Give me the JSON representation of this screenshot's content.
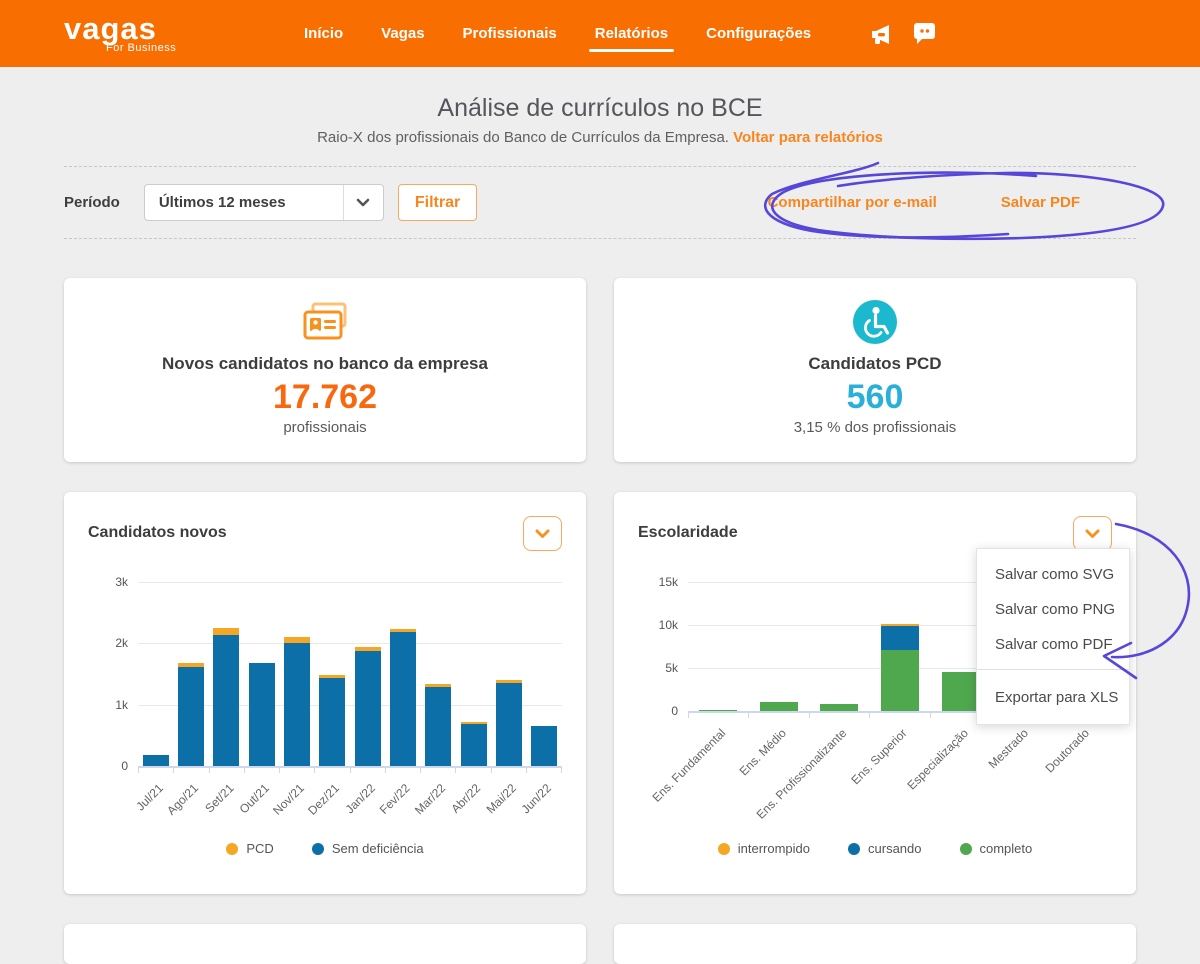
{
  "header": {
    "brand": "vagas",
    "brand_sub": "For Business",
    "nav": [
      {
        "label": "Início",
        "active": false
      },
      {
        "label": "Vagas",
        "active": false
      },
      {
        "label": "Profissionais",
        "active": false
      },
      {
        "label": "Relatórios",
        "active": true
      },
      {
        "label": "Configurações",
        "active": false
      }
    ]
  },
  "page": {
    "title": "Análise de currículos no BCE",
    "subtitle": "Raio-X dos profissionais do Banco de Currículos da Empresa.",
    "back_link": "Voltar para relatórios"
  },
  "filter_bar": {
    "label": "Período",
    "select_value": "Últimos 12 meses",
    "filter_button": "Filtrar",
    "share_email_link": "Compartilhar por e-mail",
    "save_pdf_link": "Salvar PDF"
  },
  "stats": [
    {
      "icon": "id-card-icon",
      "title": "Novos candidatos no banco da empresa",
      "value": "17.762",
      "caption": "profissionais",
      "color": "#f8690f"
    },
    {
      "icon": "wheelchair-icon",
      "title": "Candidatos PCD",
      "value": "560",
      "caption": "3,15 % dos profissionais",
      "color": "#29b0d8"
    }
  ],
  "export_menu": {
    "items": [
      "Salvar como SVG",
      "Salvar como PNG",
      "Salvar como PDF"
    ],
    "highlighted_item": "Exportar para XLS"
  },
  "chart_data": [
    {
      "type": "bar",
      "title": "Candidatos novos",
      "stacked": true,
      "categories": [
        "Jul/21",
        "Ago/21",
        "Set/21",
        "Out/21",
        "Nov/21",
        "Dez/21",
        "Jan/22",
        "Fev/22",
        "Mar/22",
        "Abr/22",
        "Mai/22",
        "Jun/22"
      ],
      "series": [
        {
          "name": "PCD",
          "color": "#f5a623",
          "values": [
            0,
            60,
            110,
            0,
            100,
            50,
            60,
            40,
            40,
            30,
            40,
            0
          ]
        },
        {
          "name": "Sem deficiência",
          "color": "#0d6fa8",
          "values": [
            180,
            1620,
            2140,
            1680,
            2000,
            1430,
            1880,
            2190,
            1290,
            690,
            1360,
            660
          ]
        }
      ],
      "ylim": [
        0,
        3000
      ],
      "yticks": [
        {
          "v": 3000,
          "label": "3k"
        },
        {
          "v": 2000,
          "label": "2k"
        },
        {
          "v": 1000,
          "label": "1k"
        },
        {
          "v": 0,
          "label": "0"
        }
      ],
      "legend_position": "bottom",
      "grid": true
    },
    {
      "type": "bar",
      "title": "Escolaridade",
      "stacked": true,
      "categories": [
        "Ens. Fundamental",
        "Ens. Médio",
        "Ens. Profissionalizante",
        "Ens. Superior",
        "Especialização",
        "Mestrado",
        "Doutorado"
      ],
      "series": [
        {
          "name": "interrompido",
          "color": "#f5a623",
          "values": [
            0,
            0,
            0,
            200,
            0,
            0,
            0
          ]
        },
        {
          "name": "cursando",
          "color": "#0d6fa8",
          "values": [
            0,
            0,
            0,
            2800,
            0,
            0,
            0
          ]
        },
        {
          "name": "completo",
          "color": "#4fa74e",
          "values": [
            60,
            1100,
            850,
            7100,
            4500,
            450,
            40
          ]
        }
      ],
      "ylim": [
        0,
        15000
      ],
      "yticks": [
        {
          "v": 15000,
          "label": "15k"
        },
        {
          "v": 10000,
          "label": "10k"
        },
        {
          "v": 5000,
          "label": "5k"
        },
        {
          "v": 0,
          "label": "0"
        }
      ],
      "legend_position": "bottom",
      "grid": true
    }
  ],
  "colors": {
    "brand_orange": "#f86e00",
    "accent_orange": "#f8861f",
    "bar_blue": "#0d6fa8",
    "bar_amber": "#f5a623",
    "bar_green": "#4fa74e",
    "stat_cyan": "#29b0d8",
    "annotation_ink": "#5747d9"
  }
}
